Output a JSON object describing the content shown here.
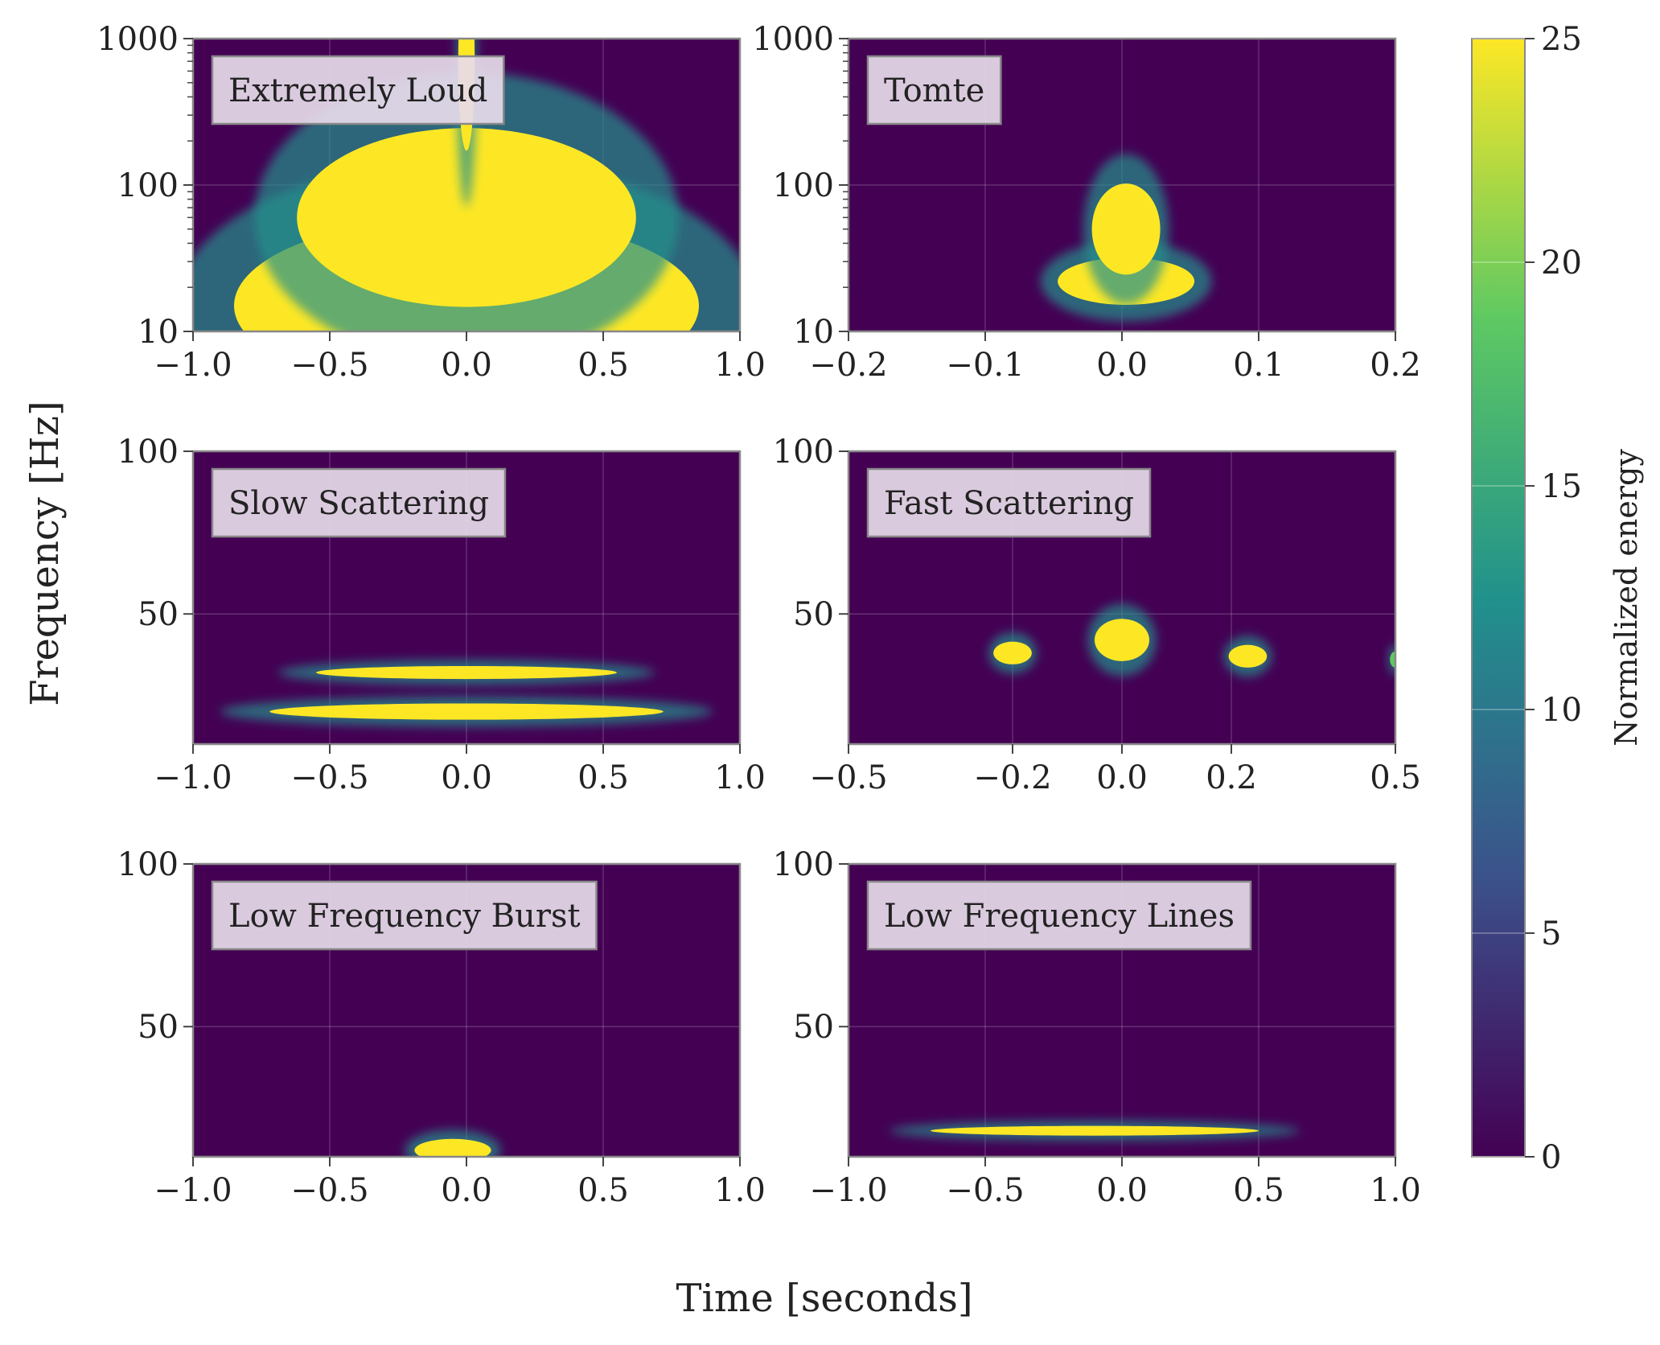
{
  "figure": {
    "xlabel": "Time [seconds]",
    "ylabel": "Frequency [Hz]"
  },
  "colorbar": {
    "label": "Normalized energy",
    "range": [
      0,
      25
    ],
    "ticks": [
      "0",
      "5",
      "10",
      "15",
      "20",
      "25"
    ],
    "colormap": "viridis",
    "colors": [
      "#440154",
      "#3b528b",
      "#21918c",
      "#5ec962",
      "#fde725"
    ]
  },
  "chart_data": [
    {
      "type": "heatmap",
      "title": "Extremely Loud",
      "xlim": [
        -1.0,
        1.0
      ],
      "ylim": [
        10,
        1000
      ],
      "yscale": "log",
      "xticks": [
        "−1.0",
        "−0.5",
        "0.0",
        "0.5",
        "1.0"
      ],
      "yticks": [
        "10",
        "100",
        "1000"
      ],
      "blobs": [
        {
          "t": 0.0,
          "f": 15,
          "dt": 0.85,
          "df": 0.6,
          "energy": 25
        },
        {
          "t": 0.0,
          "f": 60,
          "dt": 0.62,
          "df": 0.6,
          "energy": 25
        },
        {
          "t": 0.0,
          "f": 700,
          "dt": 0.03,
          "df": 0.6,
          "energy": 25
        }
      ]
    },
    {
      "type": "heatmap",
      "title": "Tomte",
      "xlim": [
        -0.2,
        0.2
      ],
      "ylim": [
        10,
        1000
      ],
      "yscale": "log",
      "xticks": [
        "−0.2",
        "−0.1",
        "0.0",
        "0.1",
        "0.2"
      ],
      "yticks": [
        "10",
        "100",
        "1000"
      ],
      "blobs": [
        {
          "t": 0.003,
          "f": 22,
          "dt": 0.05,
          "df": 0.15,
          "energy": 25
        },
        {
          "t": 0.003,
          "f": 50,
          "dt": 0.025,
          "df": 0.3,
          "energy": 25
        }
      ]
    },
    {
      "type": "heatmap",
      "title": "Slow Scattering",
      "xlim": [
        -1.0,
        1.0
      ],
      "ylim": [
        10,
        100
      ],
      "yscale": "linear",
      "xticks": [
        "−1.0",
        "−0.5",
        "0.0",
        "0.5",
        "1.0"
      ],
      "yticks": [
        "50",
        "100"
      ],
      "blobs": [
        {
          "t": 0.0,
          "f": 20,
          "dt": 0.72,
          "df": 2.0,
          "energy": 25
        },
        {
          "t": 0.0,
          "f": 32,
          "dt": 0.55,
          "df": 1.5,
          "energy": 25
        }
      ]
    },
    {
      "type": "heatmap",
      "title": "Fast Scattering",
      "xlim": [
        -0.5,
        0.5
      ],
      "ylim": [
        10,
        100
      ],
      "yscale": "linear",
      "xticks": [
        "−0.5",
        "−0.2",
        "0.0",
        "0.2",
        "0.5"
      ],
      "yticks": [
        "50",
        "100"
      ],
      "blobs": [
        {
          "t": -0.2,
          "f": 38,
          "dt": 0.035,
          "df": 3,
          "energy": 25
        },
        {
          "t": 0.0,
          "f": 42,
          "dt": 0.05,
          "df": 6,
          "energy": 25
        },
        {
          "t": 0.23,
          "f": 37,
          "dt": 0.035,
          "df": 3,
          "energy": 25
        },
        {
          "t": 0.5,
          "f": 36,
          "dt": 0.01,
          "df": 2,
          "energy": 20
        }
      ]
    },
    {
      "type": "heatmap",
      "title": "Low Frequency Burst",
      "xlim": [
        -1.0,
        1.0
      ],
      "ylim": [
        10,
        100
      ],
      "yscale": "linear",
      "xticks": [
        "−1.0",
        "−0.5",
        "0.0",
        "0.5",
        "1.0"
      ],
      "yticks": [
        "50",
        "100"
      ],
      "blobs": [
        {
          "t": -0.05,
          "f": 12,
          "dt": 0.14,
          "df": 3,
          "energy": 25
        }
      ]
    },
    {
      "type": "heatmap",
      "title": "Low Frequency Lines",
      "xlim": [
        -1.0,
        1.0
      ],
      "ylim": [
        10,
        100
      ],
      "yscale": "linear",
      "xticks": [
        "−1.0",
        "−0.5",
        "0.0",
        "0.5",
        "1.0"
      ],
      "yticks": [
        "50",
        "100"
      ],
      "blobs": [
        {
          "t": -0.1,
          "f": 18,
          "dt": 0.6,
          "df": 1.0,
          "energy": 25
        }
      ]
    }
  ]
}
